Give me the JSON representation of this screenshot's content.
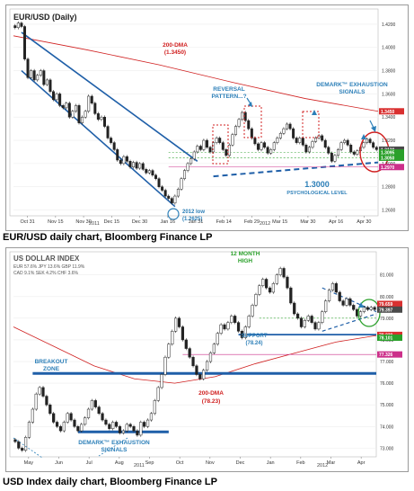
{
  "top_chart": {
    "caption": "EUR/USD daily chart, Bloomberg Finance LP",
    "title": "EUR/USD (Daily)",
    "dma_label": "200-DMA",
    "dma_value": "(1.3450)",
    "reversal_label": "REVERSAL PATTERN...?",
    "demark_label": "DEMARK™ EXHAUSTION SIGNALS",
    "support_value": "1.3000",
    "support_label": "PSYCHOLOGICAL LEVEL",
    "low_label": "2012 low",
    "low_value": "(1.2625)",
    "year_label": "2011",
    "year_label_2": "2012",
    "x_ticks": [
      "Oct 31",
      "Nov 15",
      "Nov 30",
      "Dec 15",
      "Dec 30",
      "Jan 16",
      "Jan 31",
      "Feb 14",
      "Feb 29",
      "Mar 15",
      "Mar 30",
      "Apr 16",
      "Apr 30"
    ],
    "y_ticks": [
      "1.4200",
      "1.4000",
      "1.3800",
      "1.3600",
      "1.3400",
      "1.3200",
      "1.3000",
      "1.2800",
      "1.2600"
    ],
    "price_tags": [
      {
        "text": "1.3450",
        "color": "#d93030"
      },
      {
        "text": "1.3120",
        "color": "#4a4a4a"
      },
      {
        "text": "1.3095",
        "color": "#2aa02a"
      },
      {
        "text": "1.3050",
        "color": "#2aa02a"
      },
      {
        "text": "1.2970",
        "color": "#cc2f8a"
      }
    ]
  },
  "bottom_chart": {
    "caption": "USD Index daily chart, Bloomberg Finance LP",
    "title": "US DOLLAR INDEX",
    "weights_line1": "EUR 57.6%   JPY 13.6%   GBP 11.9%",
    "weights_line2": "CAD 9.1%    SEK 4.2%    CHF 3.6%",
    "high_label": "12 MONTH HIGH",
    "support_label": "SUPPORT",
    "support_value": "(78.24)",
    "breakout_label": "BREAKOUT ZONE",
    "demark_label": "DEMARK™ EXHAUSTION SIGNALS",
    "dma_label": "200-DMA",
    "dma_value": "(78.23)",
    "year_label": "2011",
    "year_label_2": "2012",
    "x_ticks": [
      "May",
      "Jun",
      "Jul",
      "Aug",
      "Sep",
      "Oct",
      "Nov",
      "Dec",
      "Jan",
      "Feb",
      "Mar",
      "Apr"
    ],
    "y_ticks": [
      "81.000",
      "80.000",
      "79.000",
      "78.000",
      "77.000",
      "76.000",
      "75.000",
      "74.000",
      "73.000"
    ],
    "price_tags": [
      {
        "text": "79.659",
        "color": "#d93030"
      },
      {
        "text": "79.397",
        "color": "#4a4a4a"
      },
      {
        "text": "78.230",
        "color": "#d93030"
      },
      {
        "text": "78.101",
        "color": "#2aa02a"
      },
      {
        "text": "77.326",
        "color": "#cc2f8a"
      }
    ]
  },
  "chart_data": [
    {
      "type": "candlestick",
      "title": "EUR/USD (Daily)",
      "ylim": [
        1.255,
        1.43
      ],
      "x_range": [
        "2011-10-27",
        "2012-05-04"
      ],
      "candles_close": [
        1.417,
        1.421,
        1.418,
        1.39,
        1.374,
        1.38,
        1.372,
        1.376,
        1.38,
        1.368,
        1.372,
        1.362,
        1.355,
        1.36,
        1.35,
        1.348,
        1.352,
        1.34,
        1.345,
        1.35,
        1.335,
        1.34,
        1.345,
        1.358,
        1.352,
        1.343,
        1.338,
        1.34,
        1.332,
        1.322,
        1.318,
        1.312,
        1.303,
        1.3,
        1.306,
        1.302,
        1.297,
        1.301,
        1.296,
        1.3,
        1.295,
        1.292,
        1.294,
        1.29,
        1.287,
        1.28,
        1.277,
        1.272,
        1.27,
        1.266,
        1.272,
        1.278,
        1.287,
        1.294,
        1.3,
        1.304,
        1.31,
        1.315,
        1.312,
        1.32,
        1.314,
        1.31,
        1.318,
        1.322,
        1.318,
        1.312,
        1.307,
        1.316,
        1.325,
        1.332,
        1.338,
        1.344,
        1.337,
        1.33,
        1.322,
        1.317,
        1.312,
        1.318,
        1.314,
        1.309,
        1.312,
        1.318,
        1.322,
        1.326,
        1.33,
        1.334,
        1.33,
        1.322,
        1.318,
        1.322,
        1.316,
        1.31,
        1.314,
        1.319,
        1.322,
        1.324,
        1.32,
        1.314,
        1.309,
        1.302,
        1.307,
        1.312,
        1.318,
        1.32,
        1.316,
        1.31,
        1.308,
        1.311,
        1.314,
        1.318,
        1.321,
        1.318,
        1.314,
        1.312
      ],
      "lines": {
        "dma_200": [
          1.41,
          1.398,
          1.385,
          1.37,
          1.356,
          1.345
        ],
        "support": 1.3,
        "low_2012": 1.2625
      }
    },
    {
      "type": "candlestick",
      "title": "US DOLLAR INDEX",
      "ylim": [
        72.6,
        81.9
      ],
      "x_range": [
        "2011-04-25",
        "2012-04-30"
      ],
      "candles_close": [
        73.3,
        73.0,
        72.9,
        73.5,
        74.2,
        74.8,
        75.5,
        75.8,
        75.4,
        75.0,
        74.6,
        74.2,
        74.0,
        73.8,
        74.2,
        74.6,
        74.3,
        74.0,
        73.8,
        74.1,
        74.4,
        74.8,
        75.2,
        74.9,
        74.6,
        74.3,
        74.1,
        73.9,
        74.2,
        74.0,
        73.7,
        73.8,
        74.1,
        74.0,
        73.8,
        73.6,
        74.2,
        74.0,
        74.3,
        74.6,
        75.2,
        75.8,
        76.4,
        77.2,
        77.8,
        78.4,
        79.0,
        78.6,
        78.0,
        77.6,
        77.2,
        76.8,
        76.4,
        76.2,
        76.6,
        77.0,
        77.4,
        77.8,
        78.3,
        78.7,
        78.5,
        78.8,
        79.1,
        78.8,
        78.4,
        78.1,
        78.6,
        79.1,
        79.6,
        80.1,
        80.5,
        80.8,
        80.4,
        80.2,
        80.6,
        81.0,
        81.3,
        80.9,
        80.4,
        79.7,
        79.2,
        79.0,
        78.6,
        78.9,
        79.1,
        78.8,
        78.5,
        78.8,
        79.3,
        79.8,
        80.3,
        80.6,
        80.2,
        79.8,
        79.6,
        79.9,
        79.6,
        79.4,
        79.1,
        79.3,
        79.5,
        79.4,
        79.5,
        79.4
      ],
      "lines": {
        "dma_200": [
          78.6,
          77.7,
          76.8,
          76.2,
          76.0,
          76.3,
          76.9,
          77.4,
          77.9,
          78.2
        ],
        "support": 78.24,
        "breakout": 76.45
      }
    }
  ]
}
